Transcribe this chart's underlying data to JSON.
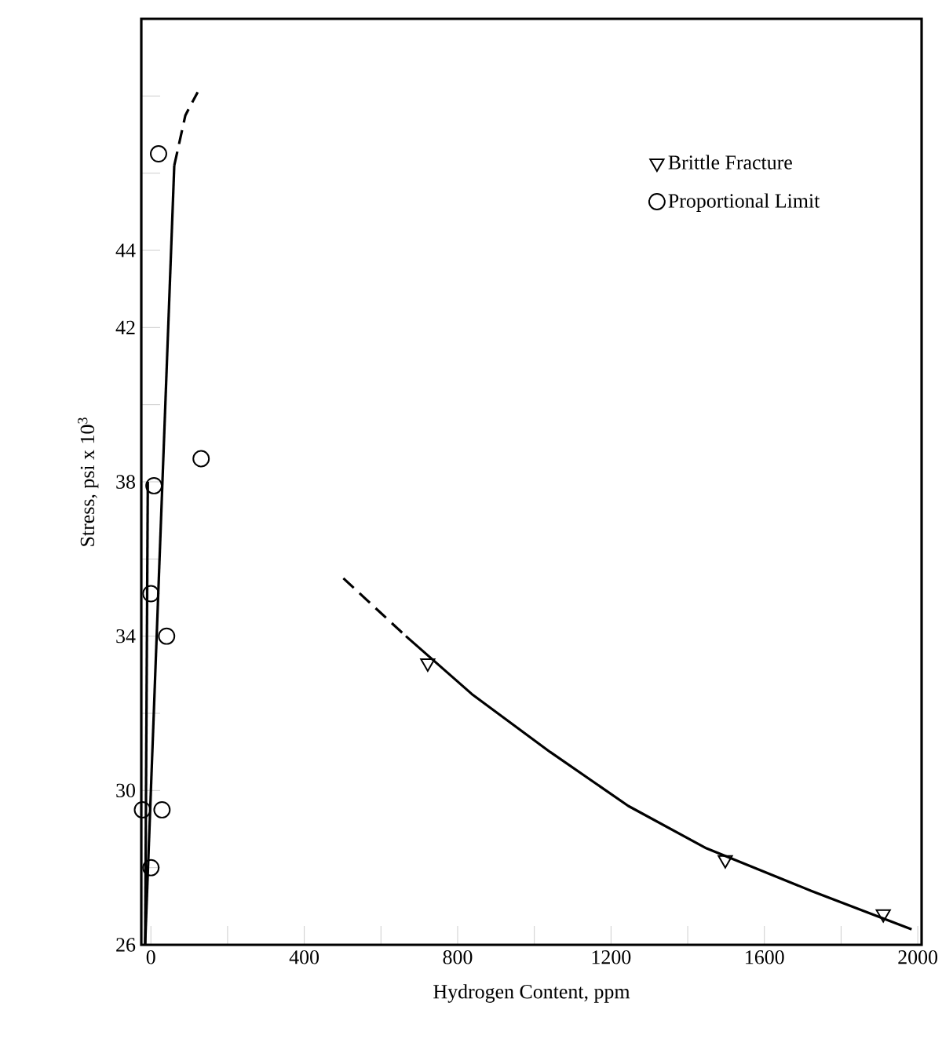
{
  "chart_data": {
    "type": "scatter",
    "xlabel": "Hydrogen Content, ppm",
    "ylabel": "Stress, psi x 10$^{3}$",
    "xlim": [
      -25,
      2010
    ],
    "ylim": [
      26,
      50
    ],
    "xticks": [
      0,
      {
        "value": 200,
        "label": null
      },
      400,
      {
        "value": 600,
        "label": null
      },
      800,
      {
        "value": 1000,
        "label": null
      },
      1200,
      {
        "value": 1400,
        "label": null
      },
      1600,
      {
        "value": 1800,
        "label": null
      },
      2000
    ],
    "yticks": [
      26,
      {
        "value": 28,
        "label": null
      },
      30,
      {
        "value": 32,
        "label": null
      },
      34,
      {
        "value": 36,
        "label": null
      },
      38,
      {
        "value": 40,
        "label": null
      },
      42,
      44,
      {
        "value": 46,
        "label": null
      },
      {
        "value": 48,
        "label": null
      }
    ],
    "legend": "top right",
    "grid": false,
    "series": [
      {
        "name": "Brittle Fracture",
        "marker": "triangle",
        "color": "#000000",
        "x": [
          722,
          1498,
          1910
        ],
        "values": [
          33.3,
          28.2,
          26.8
        ]
      },
      {
        "name": "Proportional Limit",
        "marker": "circle",
        "color": "#000000",
        "x": [
          20,
          131,
          8,
          0,
          41,
          -22,
          29,
          0
        ],
        "values": [
          46.5,
          38.6,
          37.9,
          35.1,
          34.0,
          29.5,
          29.5,
          28.0
        ]
      },
      {
        "type": "line",
        "line_style": "dashed",
        "color": "#000000",
        "x": [
          502,
          665
        ],
        "values": [
          35.5,
          34.0
        ]
      },
      {
        "type": "line",
        "line_style": "solid",
        "color": "#000000",
        "x": [
          665,
          837,
          1041,
          1245,
          1449,
          1722,
          1984
        ],
        "values": [
          34.0,
          32.5,
          31.0,
          29.6,
          28.5,
          27.4,
          26.4
        ]
      },
      {
        "type": "line",
        "line_style": "solid",
        "color": "#000000",
        "x": [
          -15,
          61
        ],
        "values": [
          26,
          46.2
        ]
      },
      {
        "type": "line",
        "line_style": "solid",
        "color": "#000000",
        "x": [
          -15,
          -8
        ],
        "values": [
          26,
          38
        ]
      },
      {
        "type": "line",
        "line_style": "dashed",
        "color": "#000000",
        "x": [
          61,
          90,
          122
        ],
        "values": [
          46.2,
          47.5,
          48.1
        ]
      }
    ]
  }
}
